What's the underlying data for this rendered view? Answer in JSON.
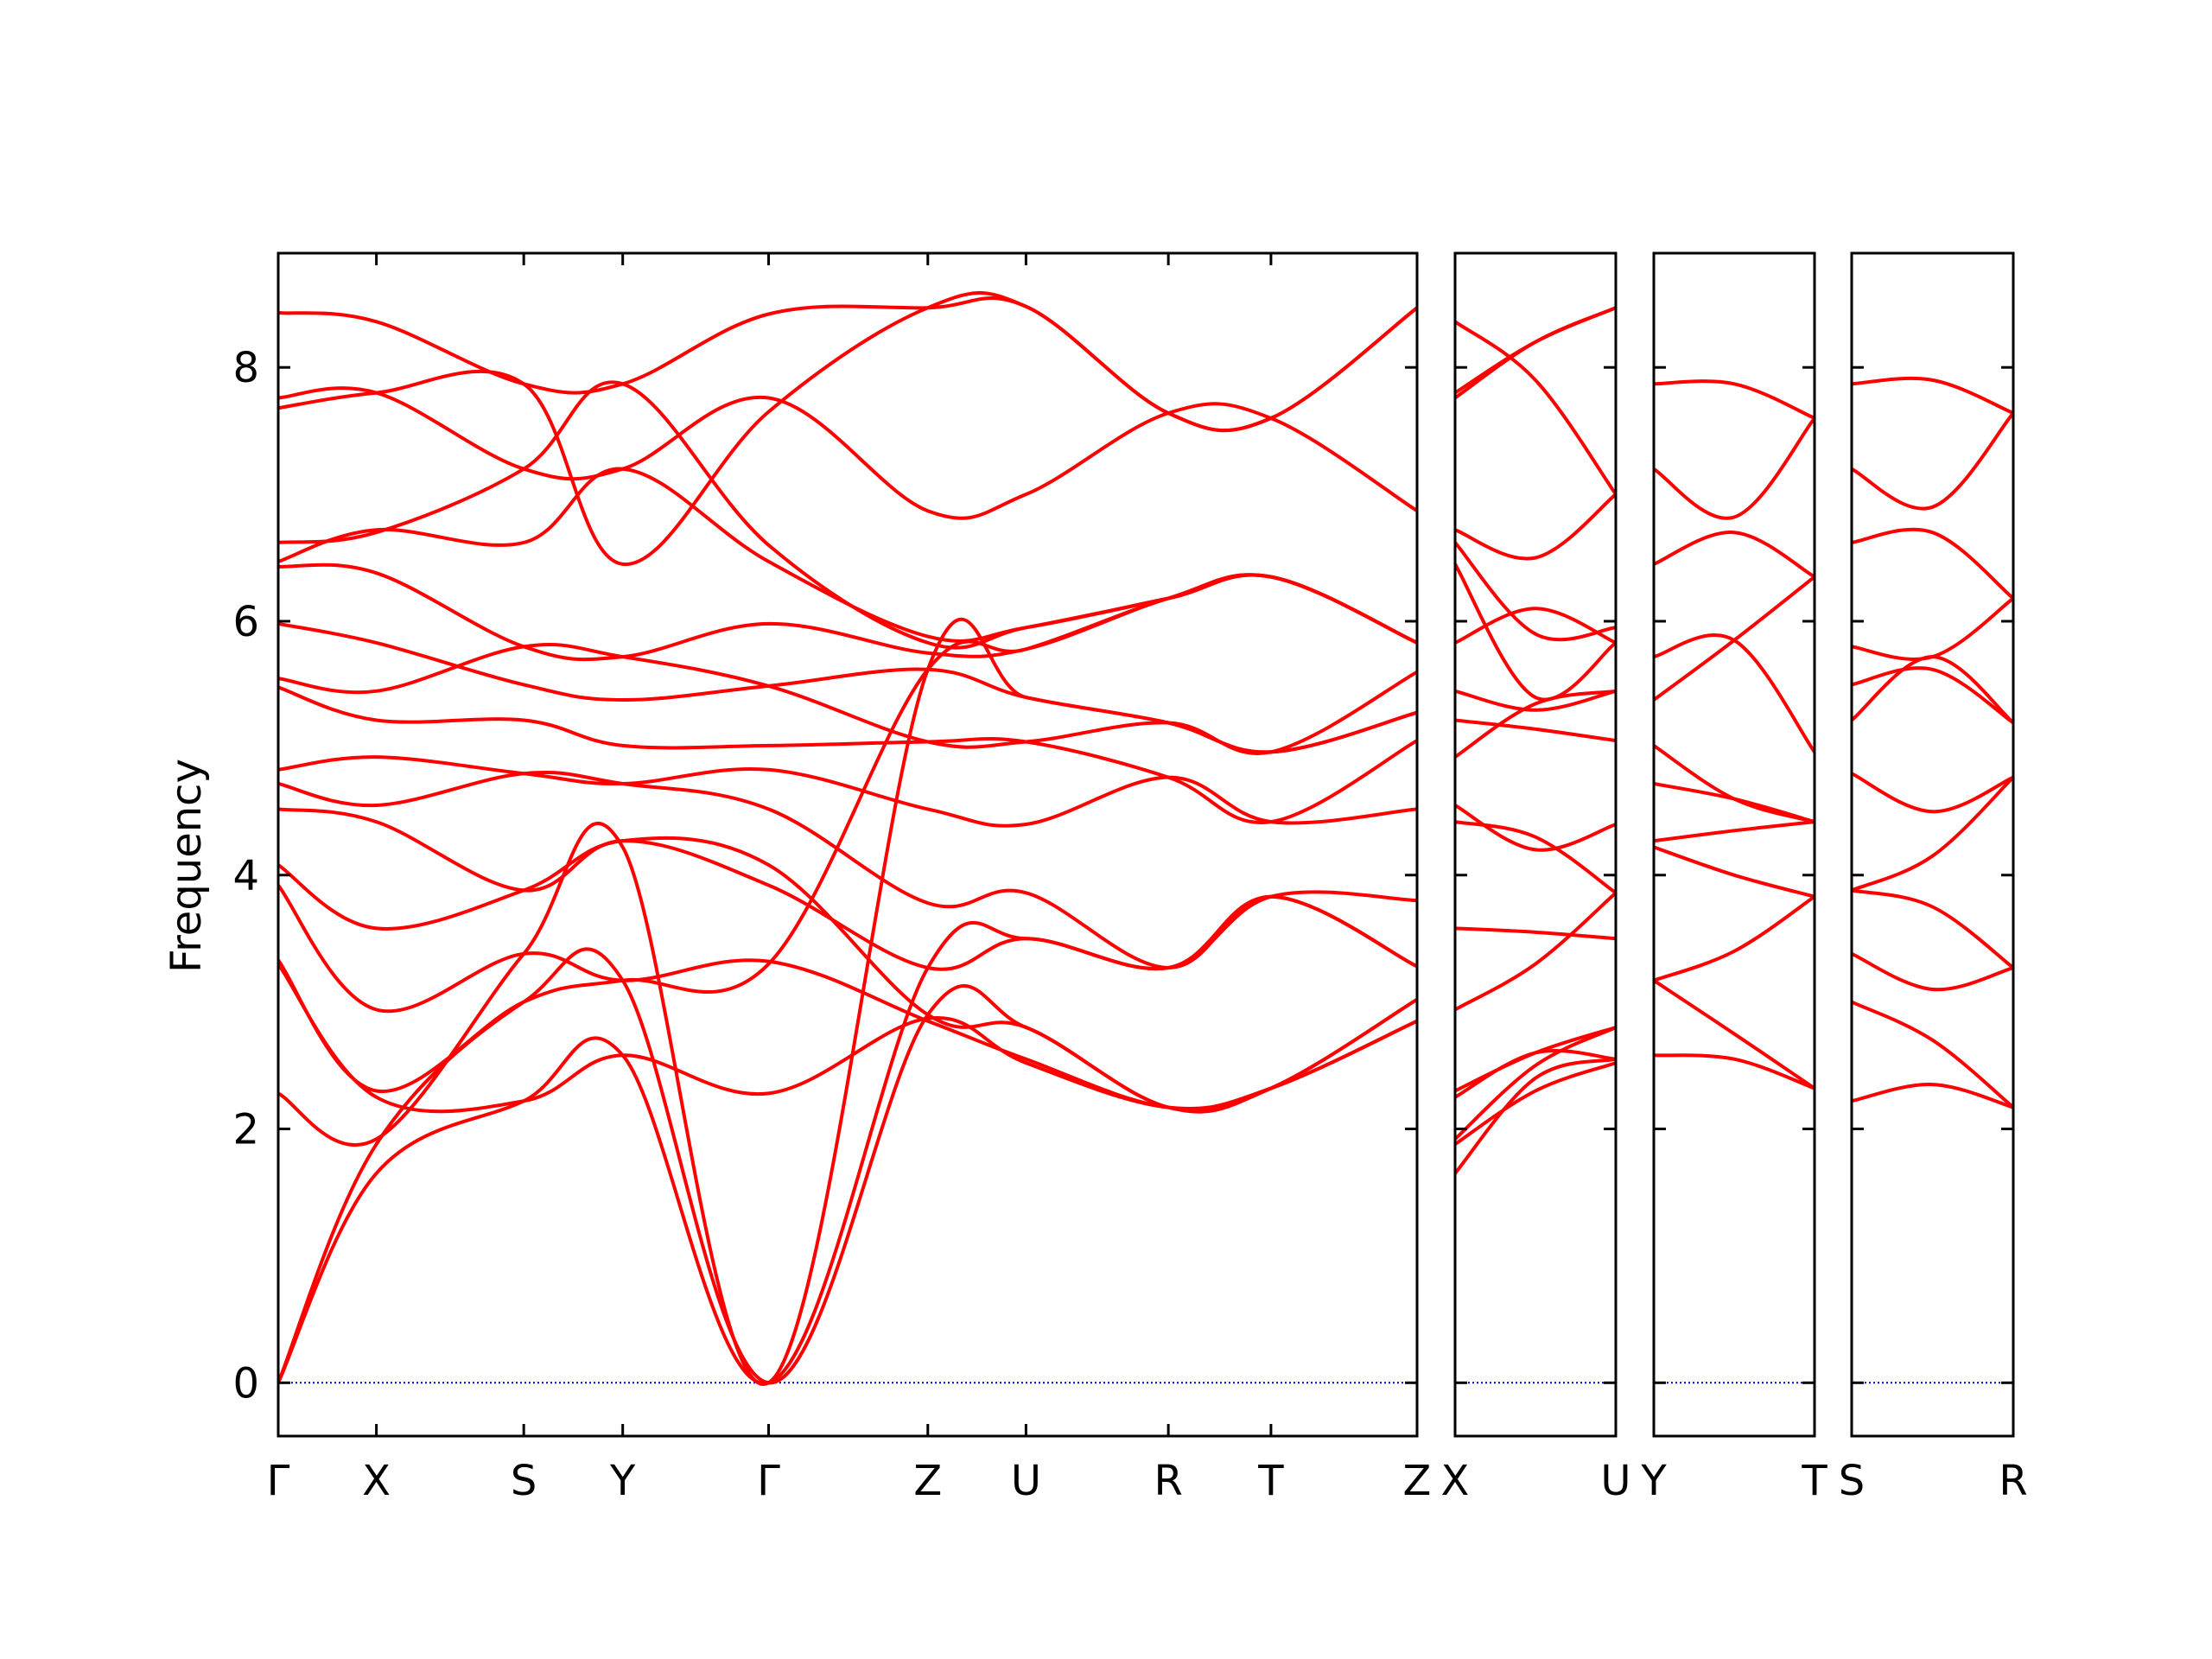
{
  "chart_data": {
    "type": "line",
    "title": "",
    "ylabel": "Frequency",
    "xlabel": "",
    "ylim": [
      -0.42,
      8.9
    ],
    "yticks": [
      0,
      2,
      4,
      6,
      8
    ],
    "grid": false,
    "colors": {
      "bands": "#ff0000",
      "zero_line": "#0000cc",
      "frame": "#000000"
    },
    "panels": [
      {
        "id": "main",
        "labels": [
          "Γ",
          "X",
          "S",
          "Y",
          "Γ",
          "Z",
          "U",
          "R",
          "T",
          "Z"
        ],
        "label_frac": [
          0,
          0.0862,
          0.2156,
          0.3025,
          0.4306,
          0.5704,
          0.6566,
          0.7816,
          0.8717,
          1
        ],
        "bands": [
          {
            "x": [
              0,
              0.0862,
              0.2156,
              0.3025,
              0.4306,
              0.5704,
              0.6566,
              0.7816,
              0.8717,
              1
            ],
            "y": [
              8.43,
              8.36,
              7.87,
              7.87,
              8.42,
              8.47,
              8.48,
              7.64,
              7.6,
              8.47
            ]
          },
          {
            "x": [
              0,
              0.0862,
              0.2156,
              0.3025,
              0.4306,
              0.5704,
              0.6566,
              0.7816,
              0.8717,
              1
            ],
            "y": [
              7.76,
              7.8,
              7.2,
              7.2,
              7.76,
              6.87,
              7.0,
              7.64,
              7.6,
              6.87
            ]
          },
          {
            "x": [
              0,
              0.0862,
              0.2156,
              0.3025,
              0.4306,
              0.5704,
              0.6566,
              0.7816,
              0.8717,
              1
            ],
            "y": [
              7.68,
              7.8,
              7.87,
              6.45,
              7.65,
              8.47,
              8.48,
              7.64,
              7.6,
              8.47
            ]
          },
          {
            "x": [
              0,
              0.0862,
              0.2156,
              0.3025,
              0.4306,
              0.5704,
              0.6566,
              0.7816,
              0.8717,
              1
            ],
            "y": [
              6.62,
              6.7,
              7.2,
              7.87,
              6.6,
              5.83,
              5.95,
              6.18,
              6.35,
              5.83
            ]
          },
          {
            "x": [
              0,
              0.0862,
              0.2156,
              0.3025,
              0.4306,
              0.5704,
              0.6566,
              0.7816,
              0.8717,
              1
            ],
            "y": [
              6.47,
              6.72,
              6.62,
              7.2,
              6.47,
              5.88,
              5.95,
              6.18,
              6.35,
              5.83
            ]
          },
          {
            "x": [
              0,
              0.0862,
              0.2156,
              0.3025,
              0.4306,
              0.5704,
              0.6566,
              0.7816,
              0.8717,
              1
            ],
            "y": [
              6.43,
              6.38,
              5.8,
              5.72,
              5.98,
              5.75,
              5.78,
              6.18,
              6.35,
              5.83
            ]
          },
          {
            "x": [
              0,
              0.0862,
              0.2156,
              0.3025,
              0.4306,
              0.5704,
              0.6566,
              0.7816,
              0.8717,
              1
            ],
            "y": [
              5.98,
              5.83,
              5.5,
              5.38,
              5.49,
              5.62,
              5.4,
              5.2,
              4.97,
              5.28
            ]
          },
          {
            "x": [
              0,
              0.0862,
              0.2156,
              0.3025,
              0.4306,
              0.5704,
              0.6566,
              0.7816,
              0.8717,
              1
            ],
            "y": [
              5.55,
              5.45,
              5.8,
              5.72,
              5.49,
              5.05,
              5.05,
              5.2,
              4.97,
              5.6
            ]
          },
          {
            "x": [
              0,
              0.0862,
              0.2156,
              0.3025,
              0.4306,
              0.5704,
              0.6566,
              0.7816,
              0.8717,
              1
            ],
            "y": [
              5.48,
              5.22,
              5.22,
              5.02,
              5.02,
              5.05,
              5.05,
              4.77,
              4.42,
              5.06
            ]
          },
          {
            "x": [
              0,
              0.0862,
              0.2156,
              0.3025,
              0.4306,
              0.5704,
              0.6566,
              0.7816,
              0.8717,
              1
            ],
            "y": [
              4.83,
              4.93,
              4.8,
              4.72,
              4.83,
              4.52,
              4.4,
              4.77,
              4.42,
              4.52
            ]
          },
          {
            "x": [
              0,
              0.0862,
              0.2156,
              0.3025,
              0.4306,
              0.5704,
              0.6566,
              0.7816,
              0.8717,
              1
            ],
            "y": [
              4.72,
              4.55,
              4.8,
              4.72,
              4.52,
              3.78,
              3.86,
              3.27,
              3.83,
              3.28
            ]
          },
          {
            "x": [
              0,
              0.0862,
              0.2156,
              0.3025,
              0.4306,
              0.5704,
              0.6566,
              0.7816,
              0.8717,
              1
            ],
            "y": [
              4.52,
              4.42,
              3.88,
              4.27,
              3.92,
              3.27,
              3.5,
              3.27,
              3.83,
              3.8
            ]
          },
          {
            "x": [
              0,
              0.0862,
              0.2156,
              0.3025,
              0.4306,
              0.5704,
              0.6566,
              0.7816,
              0.8717,
              1
            ],
            "y": [
              4.08,
              3.58,
              3.88,
              4.27,
              4.08,
              2.9,
              2.8,
              2.17,
              2.32,
              2.85
            ]
          },
          {
            "x": [
              0,
              0.0862,
              0.2156,
              0.3025,
              0.4306,
              0.5704,
              0.6566,
              0.7816,
              0.8717,
              1
            ],
            "y": [
              3.92,
              2.94,
              3.38,
              3.17,
              3.32,
              2.85,
              2.55,
              2.17,
              2.32,
              3.02
            ]
          },
          {
            "x": [
              0,
              0.0862,
              0.2156,
              0.3025,
              0.4306,
              0.5704,
              0.6566,
              0.7816,
              0.8717,
              1
            ],
            "y": [
              3.33,
              2.3,
              3.0,
              3.17,
              3.3,
              5.62,
              5.78,
              6.18,
              6.35,
              5.83
            ]
          },
          {
            "x": [
              0,
              0.0862,
              0.2156,
              0.3025,
              0.4306,
              0.5704,
              0.6566,
              0.7816,
              0.8717,
              1
            ],
            "y": [
              3.3,
              2.25,
              2.22,
              2.58,
              2.28,
              2.87,
              2.52,
              2.17,
              2.32,
              2.85
            ]
          },
          {
            "x": [
              0,
              0.0862,
              0.2156,
              0.3025,
              0.4306,
              0.5704,
              0.6566,
              0.7816,
              0.8717,
              1
            ],
            "y": [
              2.28,
              1.92,
              3.38,
              4.22,
              0,
              5.62,
              5.4,
              5.2,
              4.97,
              5.28
            ]
          },
          {
            "x": [
              0,
              0.0862,
              0.2156,
              0.3025,
              0.4306,
              0.5704,
              0.6566,
              0.7816,
              0.8717,
              1
            ],
            "y": [
              0,
              1.88,
              3.0,
              3.17,
              0,
              2.9,
              2.8,
              2.17,
              2.32,
              3.02
            ]
          },
          {
            "x": [
              0,
              0.0862,
              0.2156,
              0.3025,
              0.4306,
              0.5704,
              0.6566,
              0.7816,
              0.8717,
              1
            ],
            "y": [
              0,
              1.65,
              2.22,
              2.58,
              0,
              3.27,
              3.5,
              3.27,
              3.83,
              3.28
            ]
          }
        ]
      },
      {
        "id": "xu",
        "labels": [
          "X",
          "U"
        ],
        "label_frac": [
          0,
          1
        ],
        "bands": [
          {
            "x": [
              0,
              0.5,
              1
            ],
            "y": [
              8.36,
              7.9,
              7.0
            ]
          },
          {
            "x": [
              0,
              0.5,
              1
            ],
            "y": [
              7.8,
              8.2,
              8.47
            ]
          },
          {
            "x": [
              0,
              0.5,
              1
            ],
            "y": [
              7.76,
              8.2,
              8.47
            ]
          },
          {
            "x": [
              0,
              0.5,
              1
            ],
            "y": [
              6.72,
              6.5,
              7.0
            ]
          },
          {
            "x": [
              0,
              0.5,
              1
            ],
            "y": [
              6.62,
              5.9,
              5.95
            ]
          },
          {
            "x": [
              0,
              0.5,
              1
            ],
            "y": [
              6.45,
              5.4,
              5.83
            ]
          },
          {
            "x": [
              0,
              0.5,
              1
            ],
            "y": [
              5.83,
              6.1,
              5.83
            ]
          },
          {
            "x": [
              0,
              0.5,
              1
            ],
            "y": [
              5.45,
              5.3,
              5.45
            ]
          },
          {
            "x": [
              0,
              0.5,
              1
            ],
            "y": [
              5.22,
              5.15,
              5.06
            ]
          },
          {
            "x": [
              0,
              0.5,
              1
            ],
            "y": [
              4.93,
              5.35,
              5.45
            ]
          },
          {
            "x": [
              0,
              0.5,
              1
            ],
            "y": [
              4.55,
              4.2,
              4.4
            ]
          },
          {
            "x": [
              0,
              0.5,
              1
            ],
            "y": [
              4.42,
              4.3,
              3.86
            ]
          },
          {
            "x": [
              0,
              0.5,
              1
            ],
            "y": [
              3.58,
              3.55,
              3.5
            ]
          },
          {
            "x": [
              0,
              0.5,
              1
            ],
            "y": [
              2.94,
              3.3,
              3.86
            ]
          },
          {
            "x": [
              0,
              0.5,
              1
            ],
            "y": [
              2.3,
              2.6,
              2.8
            ]
          },
          {
            "x": [
              0,
              0.5,
              1
            ],
            "y": [
              2.25,
              2.6,
              2.55
            ]
          },
          {
            "x": [
              0,
              0.5,
              1
            ],
            "y": [
              1.92,
              2.5,
              2.8
            ]
          },
          {
            "x": [
              0,
              0.5,
              1
            ],
            "y": [
              1.88,
              2.3,
              2.52
            ]
          },
          {
            "x": [
              0,
              0.5,
              1
            ],
            "y": [
              1.65,
              2.4,
              2.55
            ]
          }
        ]
      },
      {
        "id": "yt",
        "labels": [
          "Y",
          "T"
        ],
        "label_frac": [
          0,
          1
        ],
        "bands": [
          {
            "x": [
              0,
              0.5,
              1
            ],
            "y": [
              7.87,
              7.87,
              7.6
            ]
          },
          {
            "x": [
              0,
              0.5,
              1
            ],
            "y": [
              7.2,
              6.82,
              7.6
            ]
          },
          {
            "x": [
              0,
              0.5,
              1
            ],
            "y": [
              6.45,
              6.7,
              6.35
            ]
          },
          {
            "x": [
              0,
              0.5,
              1
            ],
            "y": [
              5.72,
              5.85,
              4.97
            ]
          },
          {
            "x": [
              0,
              0.5,
              1
            ],
            "y": [
              5.38,
              5.85,
              6.35
            ]
          },
          {
            "x": [
              0,
              0.5,
              1
            ],
            "y": [
              5.02,
              4.6,
              4.42
            ]
          },
          {
            "x": [
              0,
              0.5,
              1
            ],
            "y": [
              4.72,
              4.6,
              4.42
            ]
          },
          {
            "x": [
              0,
              0.5,
              1
            ],
            "y": [
              4.27,
              4.35,
              4.42
            ]
          },
          {
            "x": [
              0,
              0.5,
              1
            ],
            "y": [
              4.22,
              4.0,
              3.83
            ]
          },
          {
            "x": [
              0,
              0.5,
              1
            ],
            "y": [
              3.17,
              3.4,
              3.83
            ]
          },
          {
            "x": [
              0,
              0.5,
              1
            ],
            "y": [
              3.17,
              2.75,
              2.32
            ]
          },
          {
            "x": [
              0,
              0.5,
              1
            ],
            "y": [
              2.58,
              2.55,
              2.32
            ]
          }
        ]
      },
      {
        "id": "sr",
        "labels": [
          "S",
          "R"
        ],
        "label_frac": [
          0,
          1
        ],
        "bands": [
          {
            "x": [
              0,
              0.5,
              1
            ],
            "y": [
              7.87,
              7.9,
              7.64
            ]
          },
          {
            "x": [
              0,
              0.5,
              1
            ],
            "y": [
              7.2,
              6.9,
              7.64
            ]
          },
          {
            "x": [
              0,
              0.5,
              1
            ],
            "y": [
              6.62,
              6.7,
              6.18
            ]
          },
          {
            "x": [
              0,
              0.5,
              1
            ],
            "y": [
              5.8,
              5.72,
              6.18
            ]
          },
          {
            "x": [
              0,
              0.5,
              1
            ],
            "y": [
              5.5,
              5.62,
              5.2
            ]
          },
          {
            "x": [
              0,
              0.5,
              1
            ],
            "y": [
              5.22,
              5.72,
              5.2
            ]
          },
          {
            "x": [
              0,
              0.5,
              1
            ],
            "y": [
              4.8,
              4.5,
              4.77
            ]
          },
          {
            "x": [
              0,
              0.5,
              1
            ],
            "y": [
              3.88,
              4.15,
              4.77
            ]
          },
          {
            "x": [
              0,
              0.5,
              1
            ],
            "y": [
              3.88,
              3.75,
              3.27
            ]
          },
          {
            "x": [
              0,
              0.5,
              1
            ],
            "y": [
              3.38,
              3.1,
              3.27
            ]
          },
          {
            "x": [
              0,
              0.5,
              1
            ],
            "y": [
              3.0,
              2.7,
              2.17
            ]
          },
          {
            "x": [
              0,
              0.5,
              1
            ],
            "y": [
              2.22,
              2.35,
              2.17
            ]
          }
        ]
      }
    ]
  }
}
